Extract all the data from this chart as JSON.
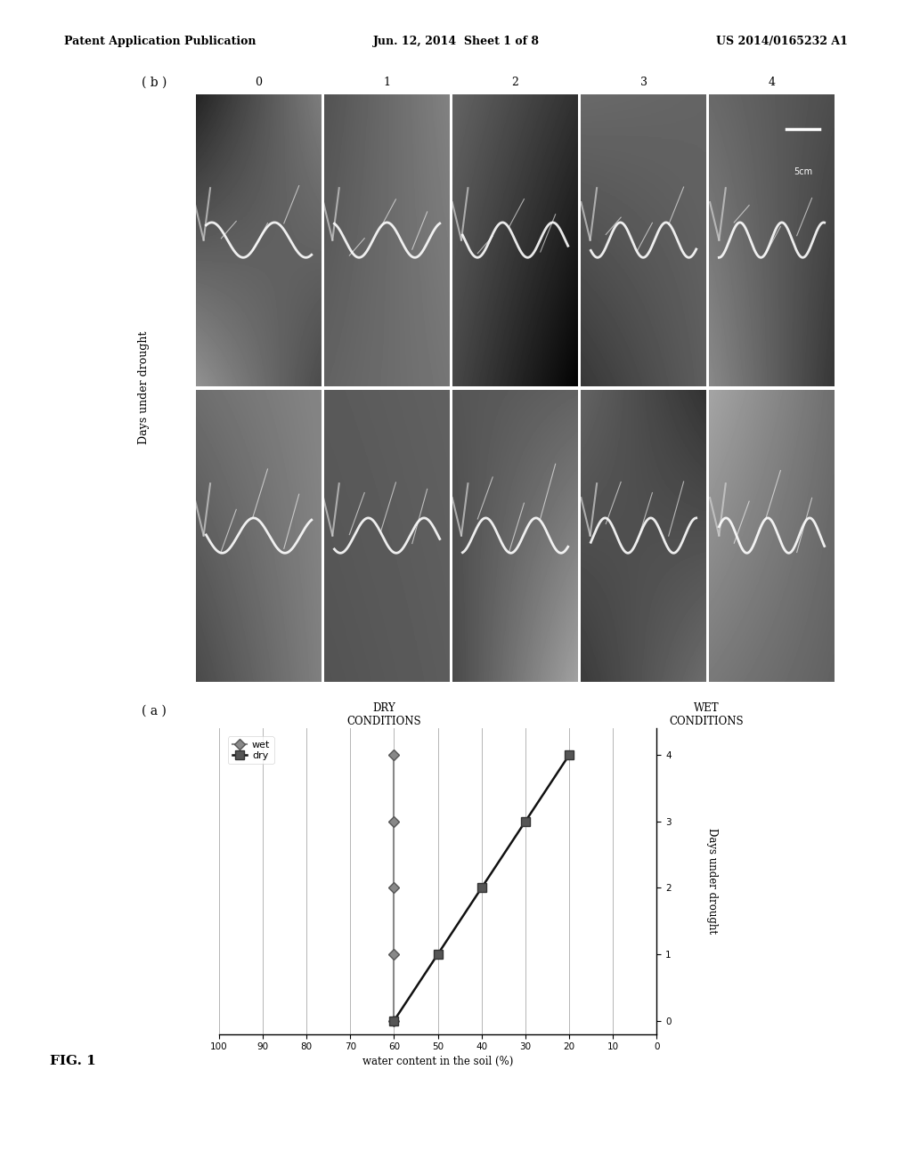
{
  "header_left": "Patent Application Publication",
  "header_center": "Jun. 12, 2014  Sheet 1 of 8",
  "header_right": "US 2014/0165232 A1",
  "fig_label": "FIG. 1",
  "panel_b_label": "( b )",
  "panel_a_label": "( a )",
  "days_labels": [
    "0",
    "1",
    "2",
    "3",
    "4"
  ],
  "dry_conditions_label": "DRY\nCONDITIONS",
  "wet_conditions_label": "WET\nCONDITIONS",
  "days_under_drought_label": "Days under drought",
  "y_axis_label": "water content in the soil (%)",
  "water_ticks": [
    0,
    10,
    20,
    30,
    40,
    50,
    60,
    70,
    80,
    90,
    100
  ],
  "days_ticks": [
    0,
    1,
    2,
    3,
    4
  ],
  "wet_days": [
    0,
    1,
    2,
    3,
    4
  ],
  "wet_water": [
    60,
    60,
    60,
    60,
    60
  ],
  "dry_days": [
    0,
    1,
    2,
    3,
    4
  ],
  "dry_water": [
    60,
    50,
    40,
    30,
    20
  ],
  "wet_color": "#888888",
  "dry_color": "#111111",
  "legend_wet": "wet",
  "legend_dry": "dry",
  "scale_bar_label": "5cm",
  "background_color": "#ffffff",
  "noise_mean": 0.32,
  "noise_std": 0.13
}
